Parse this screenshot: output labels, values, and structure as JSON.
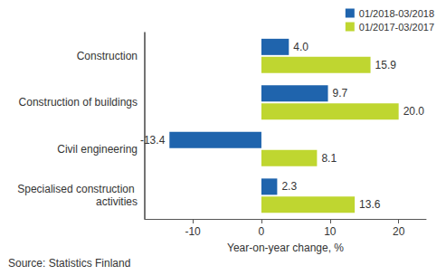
{
  "chart_data": {
    "type": "bar",
    "orientation": "horizontal",
    "categories": [
      "Construction",
      "Construction of buildings",
      "Civil engineering",
      "Specialised construction activities"
    ],
    "series": [
      {
        "name": "01/2018-03/2018",
        "color": "#1f64ad",
        "values": [
          4.0,
          9.7,
          -13.4,
          2.3
        ],
        "value_labels": [
          "4.0",
          "9.7",
          "-13.4",
          "2.3"
        ]
      },
      {
        "name": "01/2017-03/2017",
        "color": "#bfd630",
        "values": [
          15.9,
          20.0,
          8.1,
          13.6
        ],
        "value_labels": [
          "15.9",
          "20.0",
          "8.1",
          "13.6"
        ]
      }
    ],
    "xlabel": "Year-on-year change, %",
    "source": "Source: Statistics Finland",
    "xlim": [
      -17,
      24
    ],
    "xticks": [
      -10,
      0,
      10,
      20
    ],
    "grid": false,
    "legend": "top-right",
    "data_labels": true
  }
}
